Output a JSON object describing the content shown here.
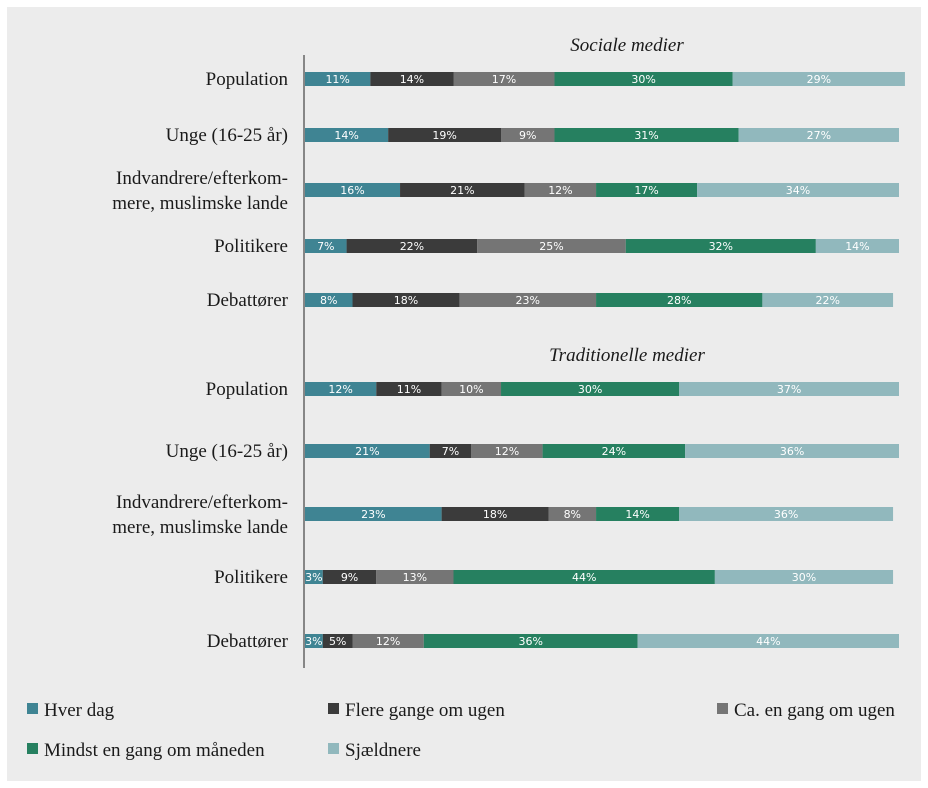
{
  "colors": {
    "background": "#ececec",
    "hver_dag": "#3f8493",
    "flere_gange": "#3b3b3b",
    "ca_en_gang": "#757575",
    "mindst_en_gang": "#268060",
    "sjaeldnere": "#91b8bd"
  },
  "chart_data": {
    "type": "bar",
    "orientation": "horizontal",
    "stacked": true,
    "unit": "%",
    "xlim": [
      0,
      100
    ],
    "grid": false,
    "legend_position": "bottom",
    "legend": [
      {
        "name": "Hver dag",
        "color": "#3f8493"
      },
      {
        "name": "Flere gange om ugen",
        "color": "#3b3b3b"
      },
      {
        "name": "Ca. en gang om ugen",
        "color": "#757575"
      },
      {
        "name": "Mindst en gang om måneden",
        "color": "#268060"
      },
      {
        "name": "Sjældnere",
        "color": "#91b8bd"
      }
    ],
    "groups": [
      {
        "title": "Sociale medier",
        "categories": [
          {
            "label": [
              "Population"
            ],
            "values": [
              11,
              14,
              17,
              30,
              29
            ]
          },
          {
            "label": [
              "Unge (16-25 år)"
            ],
            "values": [
              14,
              19,
              9,
              31,
              27
            ]
          },
          {
            "label": [
              "Indvandrere/efterkom-",
              "mere, muslimske lande"
            ],
            "values": [
              16,
              21,
              12,
              17,
              34
            ]
          },
          {
            "label": [
              "Politikere"
            ],
            "values": [
              7,
              22,
              25,
              32,
              14
            ]
          },
          {
            "label": [
              "Debattører"
            ],
            "values": [
              8,
              18,
              23,
              28,
              22
            ]
          }
        ]
      },
      {
        "title": "Traditionelle medier",
        "categories": [
          {
            "label": [
              "Population"
            ],
            "values": [
              12,
              11,
              10,
              30,
              37
            ]
          },
          {
            "label": [
              "Unge (16-25 år)"
            ],
            "values": [
              21,
              7,
              12,
              24,
              36
            ]
          },
          {
            "label": [
              "Indvandrere/efterkom-",
              "mere, muslimske lande"
            ],
            "values": [
              23,
              18,
              8,
              14,
              36
            ]
          },
          {
            "label": [
              "Politikere"
            ],
            "values": [
              3,
              9,
              13,
              44,
              30
            ]
          },
          {
            "label": [
              "Debattører"
            ],
            "values": [
              3,
              5,
              12,
              36,
              44
            ]
          }
        ]
      }
    ]
  }
}
